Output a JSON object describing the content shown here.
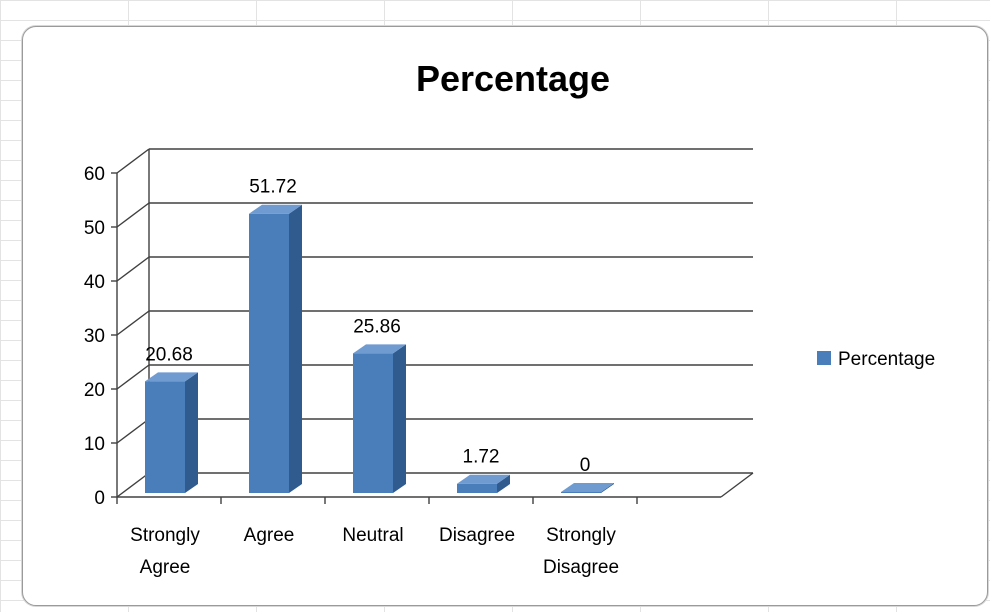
{
  "chart_data": {
    "type": "bar",
    "title": "Percentage",
    "categories": [
      [
        "Strongly",
        "Agree"
      ],
      [
        "Agree"
      ],
      [
        "Neutral"
      ],
      [
        "Disagree"
      ],
      [
        "Strongly",
        "Disagree"
      ]
    ],
    "series": [
      {
        "name": "Percentage",
        "values": [
          20.68,
          51.72,
          25.86,
          1.72,
          0
        ],
        "color": "#4a7ebb"
      }
    ],
    "data_labels": [
      "20.68",
      "51.72",
      "25.86",
      "1.72",
      "0"
    ],
    "ylim": [
      0,
      60
    ],
    "yticks": [
      0,
      10,
      20,
      30,
      40,
      50,
      60
    ],
    "grid": true,
    "legend_position": "right",
    "style": "3d-column"
  }
}
